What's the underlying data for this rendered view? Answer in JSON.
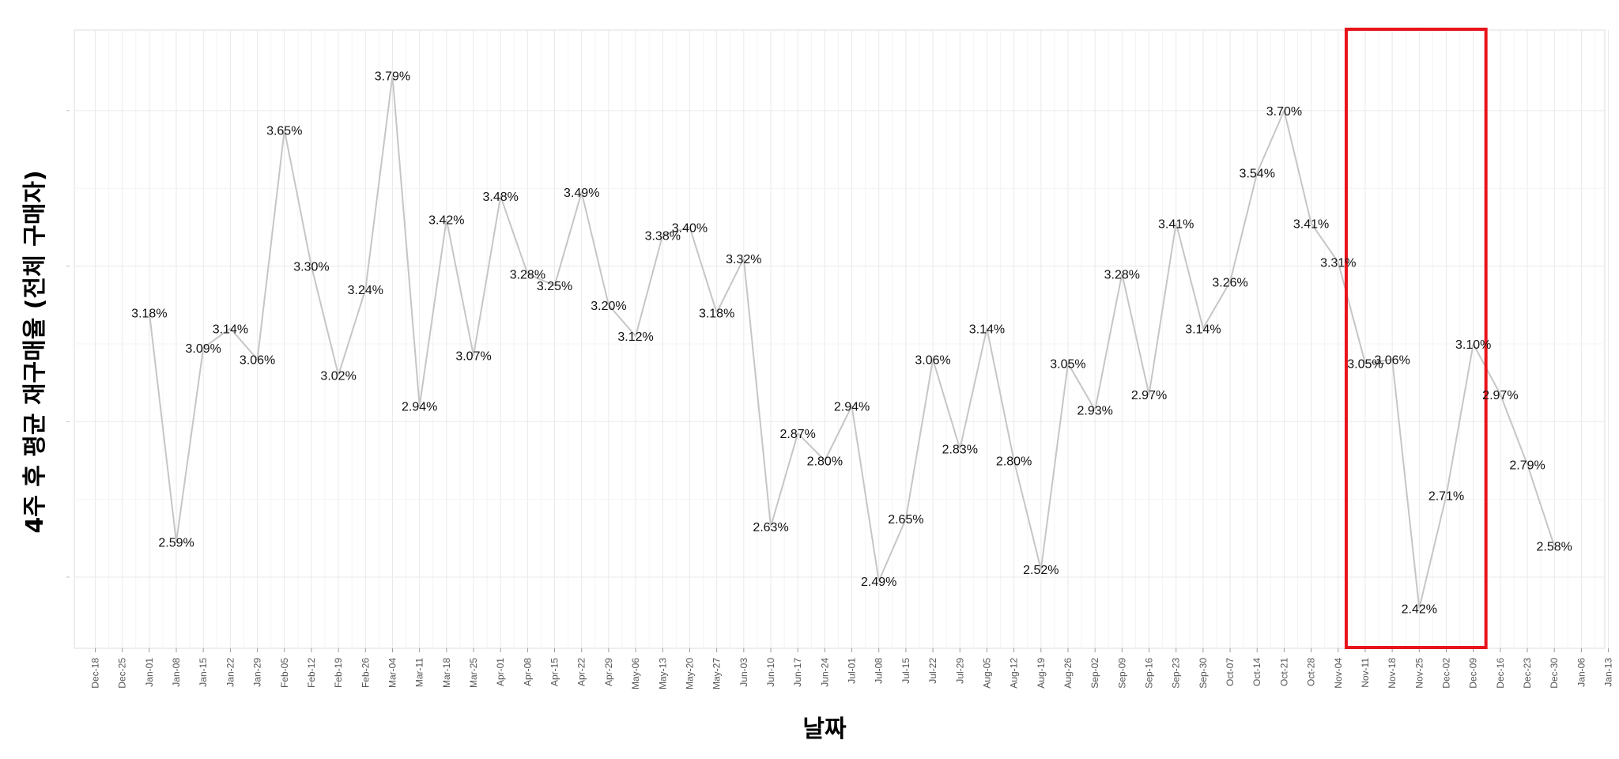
{
  "chart_data": {
    "type": "line",
    "ylabel": "4주 후 평균 재구매율 (전체 구매자)",
    "xlabel": "날짜",
    "x_ticks": [
      "Dec-18",
      "Dec-25",
      "Jan-01",
      "Jan-08",
      "Jan-15",
      "Jan-22",
      "Jan-29",
      "Feb-05",
      "Feb-12",
      "Feb-19",
      "Feb-26",
      "Mar-04",
      "Mar-11",
      "Mar-18",
      "Mar-25",
      "Apr-01",
      "Apr-08",
      "Apr-15",
      "Apr-22",
      "Apr-29",
      "May-06",
      "May-13",
      "May-20",
      "May-27",
      "Jun-03",
      "Jun-10",
      "Jun-17",
      "Jun-24",
      "Jul-01",
      "Jul-08",
      "Jul-15",
      "Jul-22",
      "Jul-29",
      "Aug-05",
      "Aug-12",
      "Aug-19",
      "Aug-26",
      "Sep-02",
      "Sep-09",
      "Sep-16",
      "Sep-23",
      "Sep-30",
      "Oct-07",
      "Oct-14",
      "Oct-21",
      "Oct-28",
      "Nov-04",
      "Nov-11",
      "Nov-18",
      "Nov-25",
      "Dec-02",
      "Dec-09",
      "Dec-16",
      "Dec-23",
      "Dec-30",
      "Jan-06",
      "Jan-13"
    ],
    "series": [
      {
        "x": [
          "Jan-01",
          "Jan-08",
          "Jan-15",
          "Jan-22",
          "Jan-29",
          "Feb-05",
          "Feb-12",
          "Feb-19",
          "Feb-26",
          "Mar-04",
          "Mar-11",
          "Mar-18",
          "Mar-25",
          "Apr-01",
          "Apr-08",
          "Apr-15",
          "Apr-22",
          "Apr-29",
          "May-06",
          "May-13",
          "May-20",
          "May-27",
          "Jun-03",
          "Jun-10",
          "Jun-17",
          "Jun-24",
          "Jul-01",
          "Jul-08",
          "Jul-15",
          "Jul-22",
          "Jul-29",
          "Aug-05",
          "Aug-12",
          "Aug-19",
          "Aug-26",
          "Sep-02",
          "Sep-09",
          "Sep-16",
          "Sep-23",
          "Sep-30",
          "Oct-07",
          "Oct-14",
          "Oct-21",
          "Oct-28",
          "Nov-04",
          "Nov-11",
          "Nov-18",
          "Nov-25",
          "Dec-02",
          "Dec-09",
          "Dec-16",
          "Dec-23",
          "Dec-30"
        ],
        "values": [
          3.18,
          2.59,
          3.09,
          3.14,
          3.06,
          3.65,
          3.3,
          3.02,
          3.24,
          3.79,
          2.94,
          3.42,
          3.07,
          3.48,
          3.28,
          3.25,
          3.49,
          3.2,
          3.12,
          3.38,
          3.4,
          3.18,
          3.32,
          2.63,
          2.87,
          2.8,
          2.94,
          2.49,
          2.65,
          3.06,
          2.83,
          3.14,
          2.8,
          2.52,
          3.05,
          2.93,
          3.28,
          2.97,
          3.41,
          3.14,
          3.26,
          3.54,
          3.7,
          3.41,
          3.31,
          3.05,
          3.06,
          2.42,
          2.71,
          3.1,
          2.97,
          2.79,
          2.58
        ],
        "labels": [
          "3.18%",
          "2.59%",
          "3.09%",
          "3.14%",
          "3.06%",
          "3.65%",
          "3.30%",
          "3.02%",
          "3.24%",
          "3.79%",
          "2.94%",
          "3.42%",
          "3.07%",
          "3.48%",
          "3.28%",
          "3.25%",
          "3.49%",
          "3.20%",
          "3.12%",
          "3.38%",
          "3.40%",
          "3.18%",
          "3.32%",
          "2.63%",
          "2.87%",
          "2.80%",
          "2.94%",
          "2.49%",
          "2.65%",
          "3.06%",
          "2.83%",
          "3.14%",
          "2.80%",
          "2.52%",
          "3.05%",
          "2.93%",
          "3.28%",
          "2.97%",
          "3.41%",
          "3.14%",
          "3.26%",
          "3.54%",
          "3.70%",
          "3.41%",
          "3.31%",
          "3.05%",
          "3.06%",
          "2.42%",
          "2.71%",
          "3.10%",
          "2.97%",
          "2.79%",
          "2.58%"
        ],
        "color": "#c6c6c6"
      }
    ],
    "ylim": [
      2.38,
      3.83
    ],
    "y_gridlines": [
      2.5,
      2.9,
      3.3,
      3.7
    ],
    "grid": true,
    "highlight": {
      "x_start": "Nov-11",
      "x_end": "Dec-09",
      "color": "#e8141c"
    }
  }
}
